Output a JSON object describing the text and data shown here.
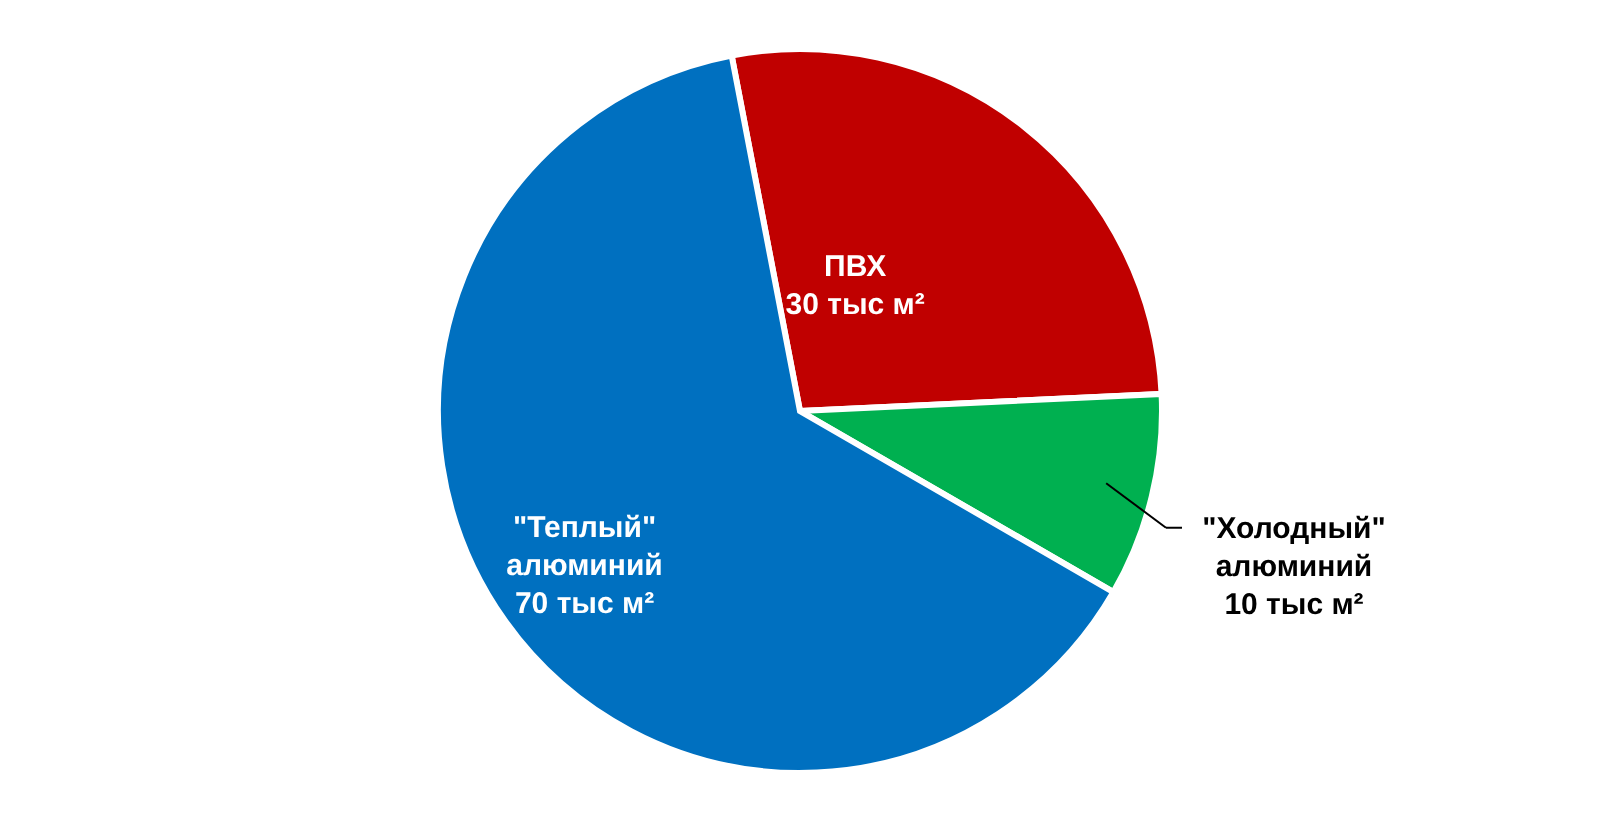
{
  "chart_data": {
    "type": "pie",
    "categories": [
      "ПВХ",
      "\"Холодный\" алюминий",
      "\"Теплый\" алюминий"
    ],
    "values": [
      30,
      10,
      70
    ],
    "colors": [
      "#c00000",
      "#00b050",
      "#0070c0"
    ],
    "value_labels": [
      "30 тыс м²",
      "10 тыс м²",
      "70 тыс м²"
    ]
  }
}
